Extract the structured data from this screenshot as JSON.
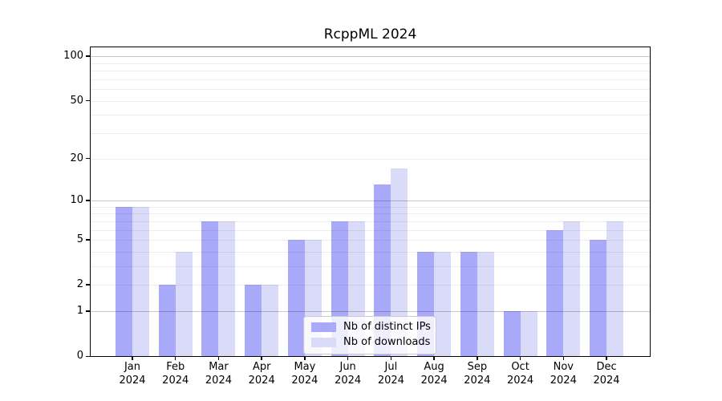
{
  "title": "RcppML 2024",
  "chart_data": {
    "type": "bar",
    "title": "RcppML 2024",
    "categories": [
      "Jan",
      "Feb",
      "Mar",
      "Apr",
      "May",
      "Jun",
      "Jul",
      "Aug",
      "Sep",
      "Oct",
      "Nov",
      "Dec"
    ],
    "category_year": "2024",
    "series": [
      {
        "name": "Nb of distinct IPs",
        "color": "#a9a9fa",
        "values": [
          9,
          2,
          7,
          2,
          5,
          7,
          13,
          4,
          4,
          1,
          6,
          5
        ]
      },
      {
        "name": "Nb of downloads",
        "color": "#dadaf9",
        "values": [
          9,
          4,
          7,
          2,
          5,
          7,
          17,
          4,
          4,
          1,
          7,
          7
        ]
      }
    ],
    "yscale": "log1p",
    "ylim": [
      0,
      115
    ],
    "y_tick_labels": [
      "100",
      "50",
      "20",
      "10",
      "5",
      "2",
      "1",
      "0"
    ],
    "grid_major_values": [
      1,
      10,
      100
    ],
    "grid_minor_values": [
      2,
      3,
      4,
      5,
      6,
      7,
      8,
      9,
      20,
      30,
      40,
      50,
      60,
      70,
      80,
      90
    ],
    "grid": "on",
    "legend_position": "inside-bottom-center"
  },
  "colors": {
    "background": "#ffffff",
    "axis_box": "#000000",
    "text": "#000000",
    "bar_distinct_ips": "#a9a9fa",
    "bar_downloads": "#dadaf9"
  }
}
